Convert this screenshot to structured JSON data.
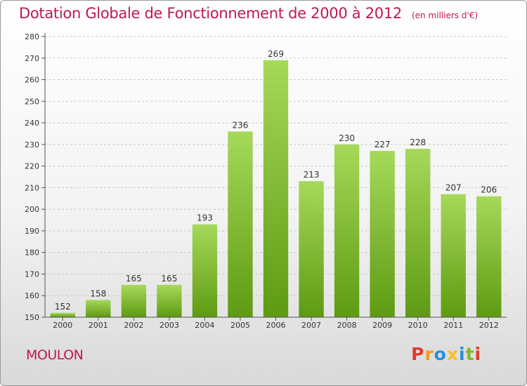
{
  "header": {
    "title": "Dotation Globale de Fonctionnement de 2000 à 2012",
    "unit": "(en milliers d'€)"
  },
  "footer": {
    "commune": "MOULON",
    "brand_letters": [
      "P",
      "r",
      "o",
      "x",
      "i",
      "t",
      "i"
    ],
    "brand_colors": [
      "#e23a2b",
      "#f29a1f",
      "#2a8fd4",
      "#f2c21f",
      "#2a8fd4",
      "#7cb82a",
      "#e23a2b"
    ]
  },
  "colors": {
    "accent": "#c0184f",
    "bar_top": "#a6d95a",
    "bar_bottom": "#5e9a12"
  },
  "chart_data": {
    "type": "bar",
    "title": "Dotation Globale de Fonctionnement de 2000 à 2012",
    "subtitle": "(en milliers d'€)",
    "categories": [
      "2000",
      "2001",
      "2002",
      "2003",
      "2004",
      "2005",
      "2006",
      "2007",
      "2008",
      "2009",
      "2010",
      "2011",
      "2012"
    ],
    "values": [
      152,
      158,
      165,
      165,
      193,
      236,
      269,
      213,
      230,
      227,
      228,
      207,
      206
    ],
    "ylim": [
      150,
      280
    ],
    "yticks": [
      150,
      160,
      170,
      180,
      190,
      200,
      210,
      220,
      230,
      240,
      250,
      260,
      270,
      280
    ],
    "xlabel": "",
    "ylabel": "",
    "grid": "horizontal-dashed",
    "legend": "none"
  }
}
